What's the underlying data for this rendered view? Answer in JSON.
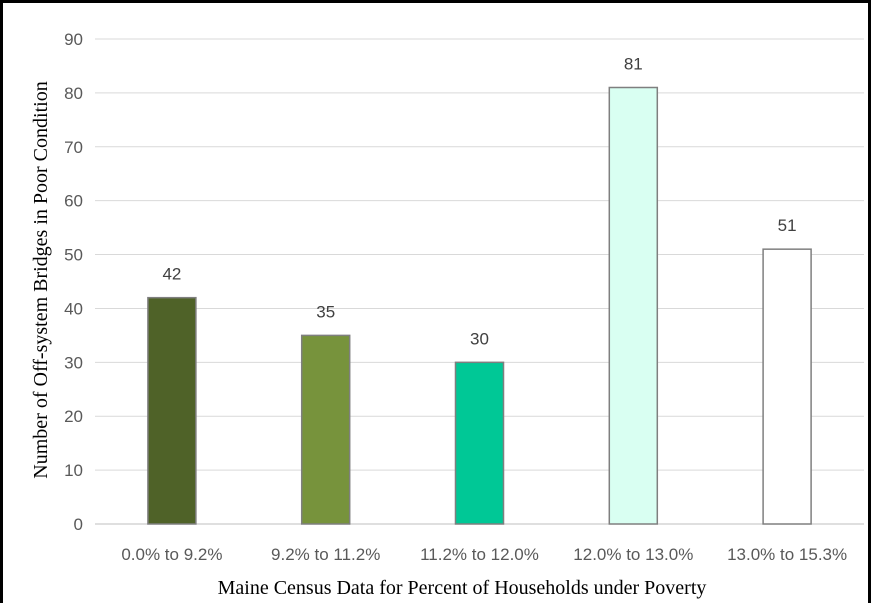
{
  "chart_data": {
    "type": "bar",
    "title": "",
    "xlabel": "Maine Census Data for Percent of Households under Poverty",
    "ylabel": "Number of Off-system Bridges in Poor Condition",
    "categories": [
      "0.0% to 9.2%",
      "9.2% to 11.2%",
      "11.2% to 12.0%",
      "12.0% to 13.0%",
      "13.0% to 15.3%"
    ],
    "values": [
      42,
      35,
      30,
      81,
      51
    ],
    "bar_colors": [
      "#4f6228",
      "#77933c",
      "#00c896",
      "#d9fff2",
      "#ffffff"
    ],
    "ylim": [
      0,
      90
    ],
    "yticks": [
      0,
      10,
      20,
      30,
      40,
      50,
      60,
      70,
      80,
      90
    ],
    "grid": true,
    "legend": "none"
  }
}
